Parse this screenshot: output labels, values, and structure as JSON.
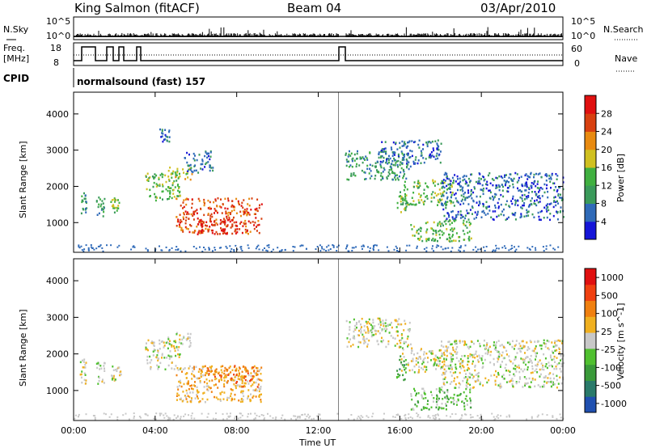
{
  "header": {
    "station": "King Salmon (fitACF)",
    "beam": "Beam 04",
    "date": "03/Apr/2010"
  },
  "strips": {
    "nsky_label": "N.Sky",
    "nsearch_label": "N.Search",
    "freq_label_1": "Freq.",
    "freq_label_2": "[MHz]",
    "nave_label": "Nave",
    "cpid_label": "CPID",
    "cpid_text": "normalsound (fast) 157",
    "noise_ticks_left": [
      "10^5",
      "10^0"
    ],
    "noise_ticks_right": [
      "10^5",
      "10^0"
    ],
    "freq_ticks": [
      "18",
      "8"
    ],
    "nave_ticks": [
      "60",
      "0"
    ]
  },
  "chart_data": [
    {
      "type": "heatmap",
      "title": "",
      "xlabel": "Time UT",
      "ylabel": "Slant Range [km]",
      "xlim": [
        0,
        24
      ],
      "ylim": [
        180,
        4600
      ],
      "x_ticks": [
        "00:00",
        "04:00",
        "08:00",
        "12:00",
        "16:00",
        "20:00",
        "00:00"
      ],
      "y_ticks": [
        "1000",
        "2000",
        "3000",
        "4000"
      ],
      "colorbar": {
        "label": "Power [dB]",
        "ticks": [
          "4",
          "8",
          "12",
          "16",
          "20",
          "24",
          "28"
        ],
        "colors": [
          "#1515d8",
          "#2f6ab8",
          "#3a9a5a",
          "#40b040",
          "#d0c020",
          "#e88a10",
          "#d84010",
          "#e01010"
        ]
      },
      "data_gap_hours": [
        13.0,
        13.3
      ],
      "echo_regions": [
        {
          "t0": 0.3,
          "t1": 0.6,
          "r0": 1200,
          "r1": 1900,
          "level": 2
        },
        {
          "t0": 1.1,
          "t1": 1.5,
          "r0": 1200,
          "r1": 1800,
          "level": 2
        },
        {
          "t0": 1.8,
          "t1": 2.3,
          "r0": 1300,
          "r1": 1700,
          "level": 3
        },
        {
          "t0": 3.5,
          "t1": 5.2,
          "r0": 1600,
          "r1": 2400,
          "level": 3
        },
        {
          "t0": 4.6,
          "t1": 5.8,
          "r0": 2200,
          "r1": 2600,
          "level": 4
        },
        {
          "t0": 5.4,
          "t1": 6.8,
          "r0": 2400,
          "r1": 3000,
          "level": 1
        },
        {
          "t0": 4.2,
          "t1": 4.7,
          "r0": 3200,
          "r1": 3600,
          "level": 1
        },
        {
          "t0": 5.0,
          "t1": 9.2,
          "r0": 700,
          "r1": 1700,
          "level": 6
        },
        {
          "t0": 6.0,
          "t1": 8.0,
          "r0": 700,
          "r1": 1100,
          "level": 7
        },
        {
          "t0": 13.3,
          "t1": 16.5,
          "r0": 2200,
          "r1": 3000,
          "level": 2
        },
        {
          "t0": 16.0,
          "t1": 18.6,
          "r0": 1500,
          "r1": 2200,
          "level": 3
        },
        {
          "t0": 15.8,
          "t1": 16.3,
          "r0": 1300,
          "r1": 2000,
          "level": 3
        },
        {
          "t0": 16.5,
          "t1": 19.5,
          "r0": 500,
          "r1": 1100,
          "level": 3
        },
        {
          "t0": 18.0,
          "t1": 24.0,
          "r0": 1100,
          "r1": 2400,
          "level": 1
        },
        {
          "t0": 15.0,
          "t1": 18.0,
          "r0": 2600,
          "r1": 3300,
          "level": 1
        }
      ]
    },
    {
      "type": "heatmap",
      "title": "",
      "xlabel": "Time UT",
      "ylabel": "Slant Range [km]",
      "xlim": [
        0,
        24
      ],
      "ylim": [
        180,
        4600
      ],
      "x_ticks": [
        "00:00",
        "04:00",
        "08:00",
        "12:00",
        "16:00",
        "20:00",
        "00:00"
      ],
      "y_ticks": [
        "1000",
        "2000",
        "3000",
        "4000"
      ],
      "colorbar": {
        "label": "Velocity [m s^-1]",
        "ticks": [
          "1000",
          "500",
          "100",
          "25",
          "-25",
          "-100",
          "-500",
          "-1000"
        ],
        "colors": [
          "#2050b0",
          "#2a7a6a",
          "#3a9a3a",
          "#50c030",
          "#c8c8c8",
          "#f0b020",
          "#f08010",
          "#f04010",
          "#e01010"
        ]
      },
      "data_gap_hours": [
        13.0,
        13.3
      ],
      "echo_regions": [
        {
          "t0": 0.3,
          "t1": 0.6,
          "r0": 1200,
          "r1": 1900,
          "level": 4
        },
        {
          "t0": 1.1,
          "t1": 1.5,
          "r0": 1200,
          "r1": 1800,
          "level": 4
        },
        {
          "t0": 1.8,
          "t1": 2.3,
          "r0": 1300,
          "r1": 1700,
          "level": 4
        },
        {
          "t0": 3.5,
          "t1": 5.2,
          "r0": 1600,
          "r1": 2400,
          "level": 4
        },
        {
          "t0": 4.6,
          "t1": 5.8,
          "r0": 2200,
          "r1": 2600,
          "level": 4
        },
        {
          "t0": 5.0,
          "t1": 9.2,
          "r0": 700,
          "r1": 1700,
          "level": 5
        },
        {
          "t0": 6.5,
          "t1": 9.2,
          "r0": 1100,
          "r1": 1700,
          "level": 6
        },
        {
          "t0": 13.3,
          "t1": 16.5,
          "r0": 2200,
          "r1": 3000,
          "level": 4
        },
        {
          "t0": 16.0,
          "t1": 18.6,
          "r0": 1500,
          "r1": 2200,
          "level": 4
        },
        {
          "t0": 15.8,
          "t1": 16.3,
          "r0": 1300,
          "r1": 2000,
          "level": 2
        },
        {
          "t0": 16.5,
          "t1": 19.5,
          "r0": 500,
          "r1": 1100,
          "level": 3
        },
        {
          "t0": 18.0,
          "t1": 24.0,
          "r0": 1100,
          "r1": 2400,
          "level": 4
        }
      ]
    }
  ]
}
